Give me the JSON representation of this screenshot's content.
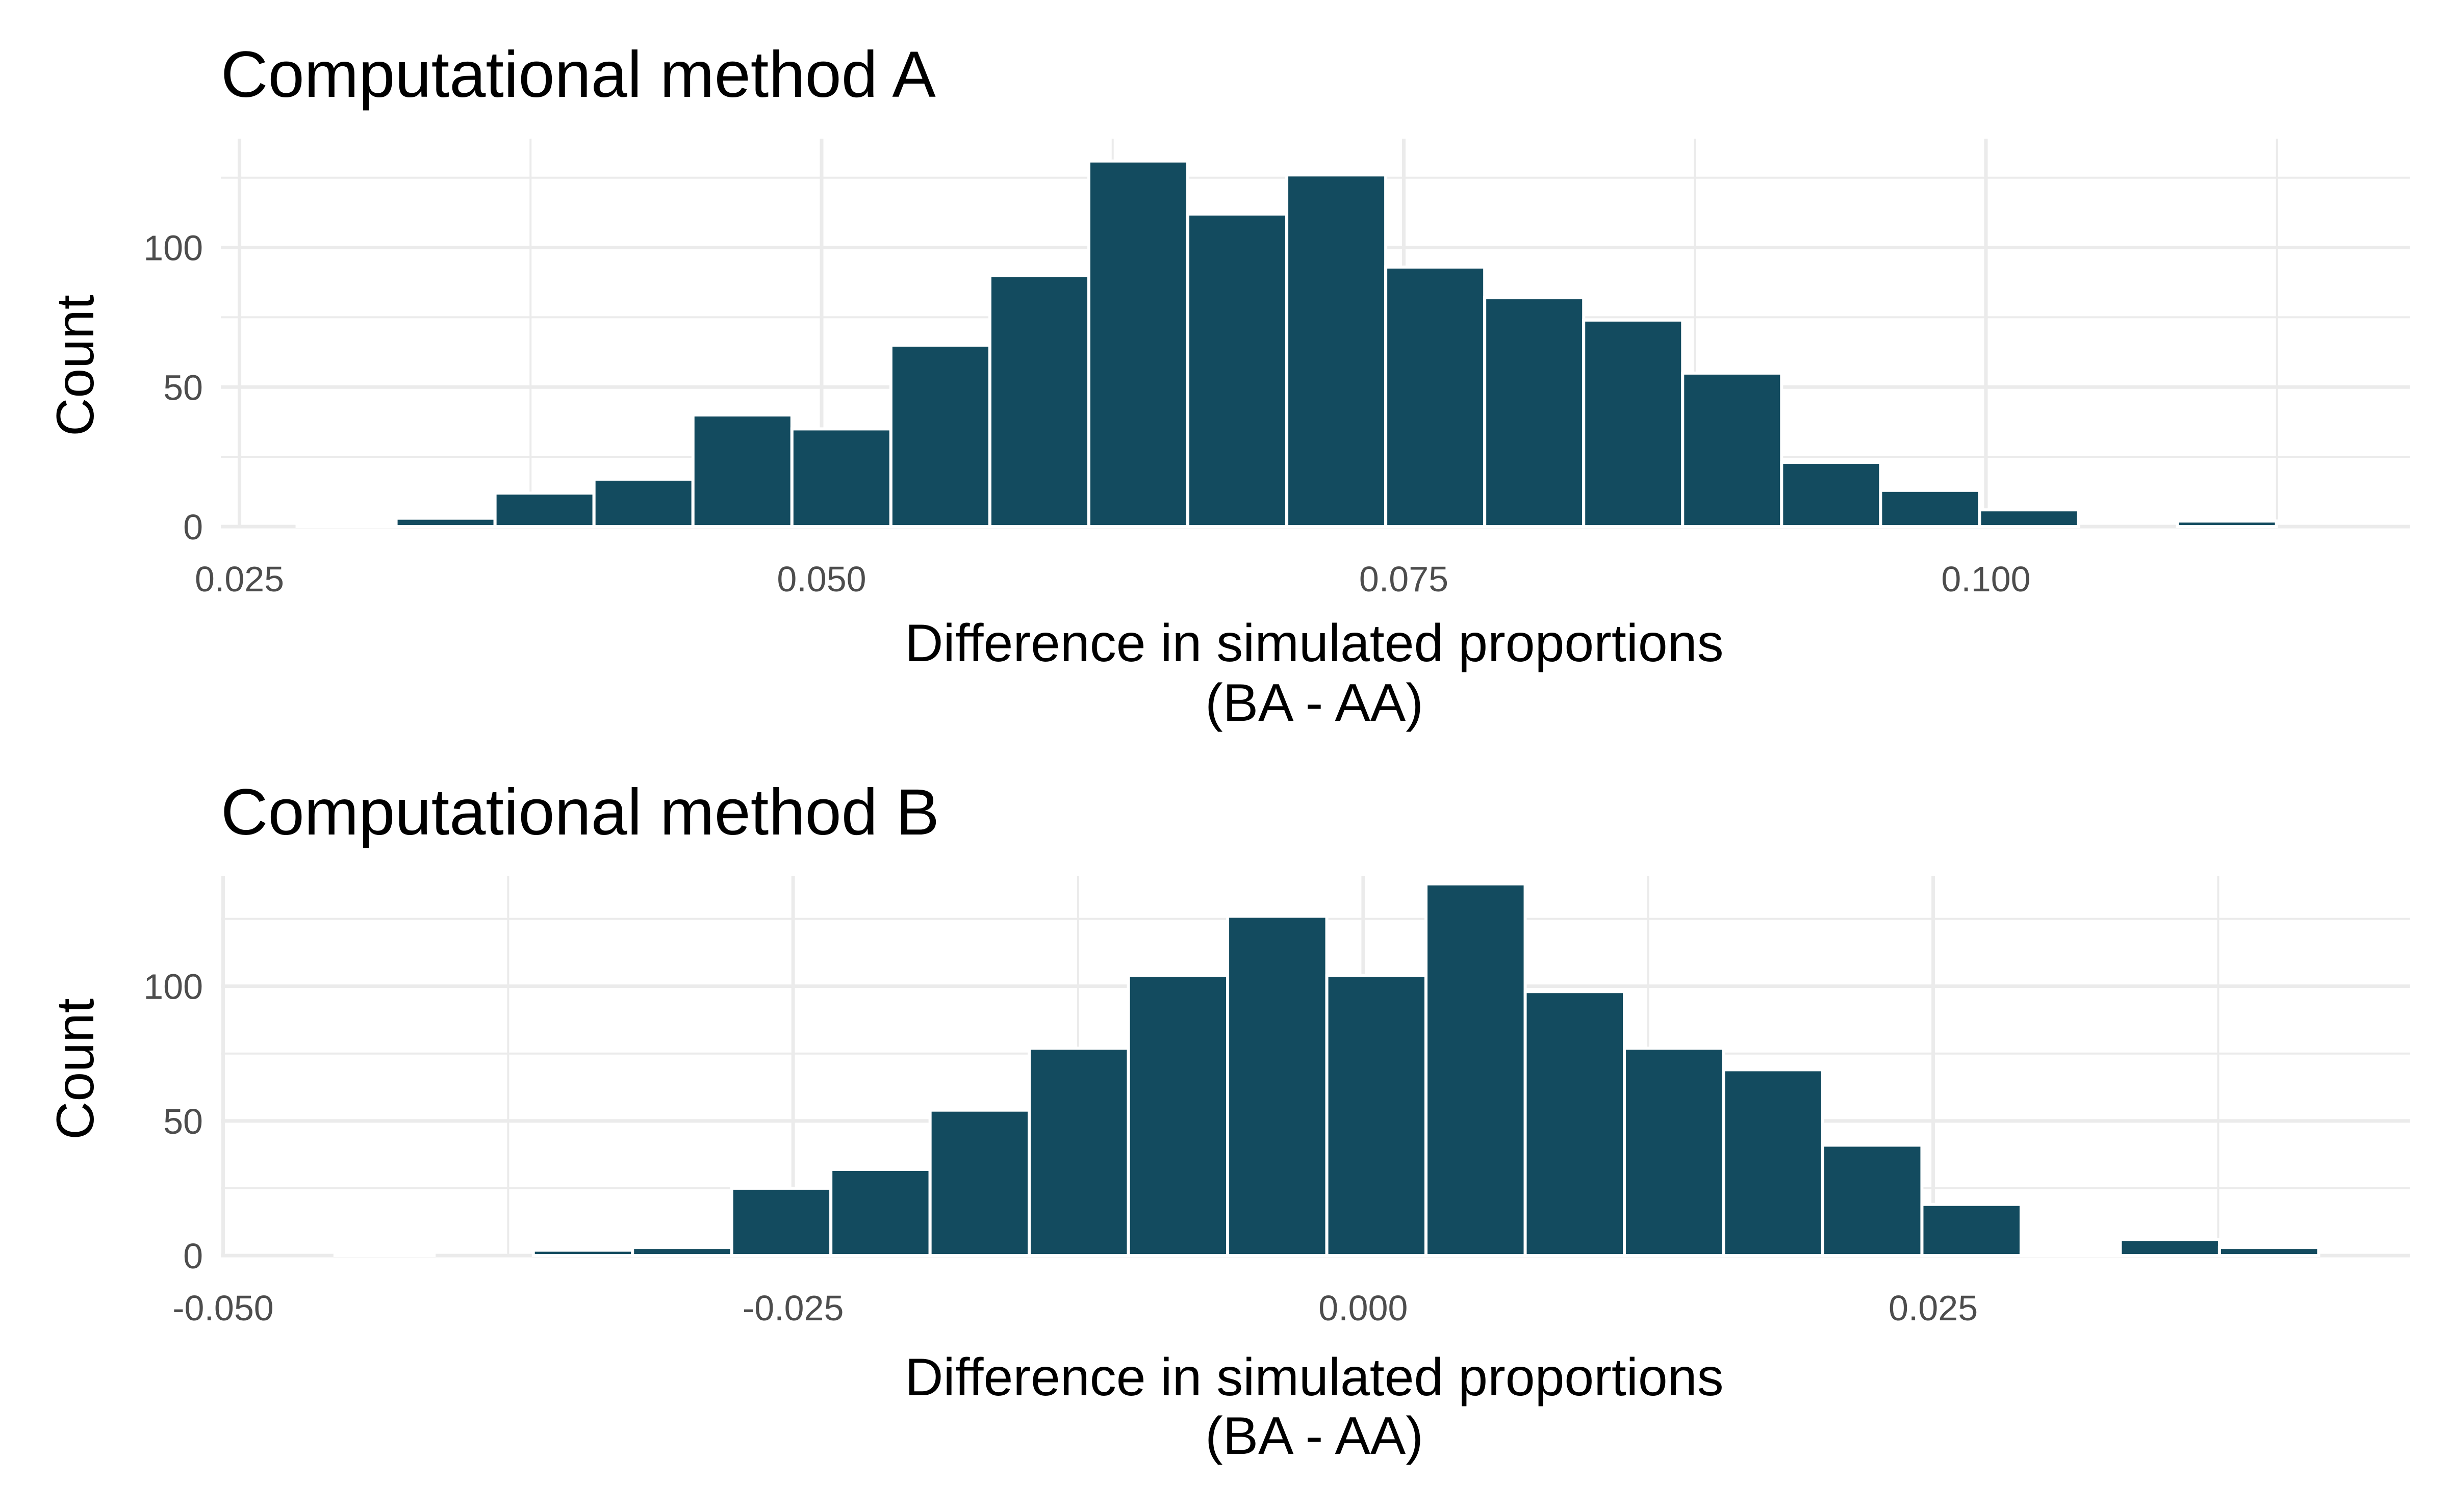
{
  "colors": {
    "bar_fill": "#134b5f",
    "background": "#ffffff",
    "grid": "#ebebeb",
    "tick_text": "#4d4d4d"
  },
  "chart_data": [
    {
      "type": "bar",
      "title": "Computational method A",
      "xlabel": "Difference in simulated proportions",
      "xlabel_line2": "(BA - AA)",
      "ylabel": "Count",
      "xlim": [
        0.0242,
        0.1182
      ],
      "ylim": [
        0,
        139
      ],
      "xticks": [
        0.025,
        0.05,
        0.075,
        0.1
      ],
      "xtick_labels": [
        "0.025",
        "0.050",
        "0.075",
        "0.100"
      ],
      "xminor": [
        0.0375,
        0.0625,
        0.0875,
        0.1125
      ],
      "yticks": [
        0,
        50,
        100
      ],
      "ytick_labels": [
        "0",
        "50",
        "100"
      ],
      "yminor": [
        25,
        75,
        125
      ],
      "bin_width": 0.00425,
      "bin_centers": [
        0.0296,
        0.03385,
        0.0381,
        0.04235,
        0.0466,
        0.05085,
        0.0551,
        0.05935,
        0.0636,
        0.06785,
        0.0721,
        0.07635,
        0.0806,
        0.08485,
        0.0891,
        0.09335,
        0.0976,
        0.10185,
        0.1061,
        0.11035
      ],
      "values": [
        1,
        3,
        12,
        17,
        40,
        35,
        65,
        90,
        131,
        112,
        126,
        93,
        82,
        74,
        55,
        23,
        13,
        6,
        0,
        2
      ]
    },
    {
      "type": "bar",
      "title": "Computational method B",
      "xlabel": "Difference in simulated proportions",
      "xlabel_line2": "(BA - AA)",
      "ylabel": "Count",
      "xlim": [
        -0.0501,
        0.0459
      ],
      "ylim": [
        0,
        141
      ],
      "xticks": [
        -0.05,
        -0.025,
        0.0,
        0.025
      ],
      "xtick_labels": [
        "-0.050",
        "-0.025",
        "0.000",
        "0.025"
      ],
      "xminor": [
        -0.0375,
        -0.0125,
        0.0125,
        0.0375
      ],
      "yticks": [
        0,
        50,
        100
      ],
      "ytick_labels": [
        "0",
        "50",
        "100"
      ],
      "yminor": [
        25,
        75,
        125
      ],
      "bin_width": 0.00435,
      "bin_centers": [
        -0.04292,
        -0.03857,
        -0.03422,
        -0.02987,
        -0.02552,
        -0.02117,
        -0.01682,
        -0.01247,
        -0.00812,
        -0.00377,
        0.00058,
        0.00493,
        0.00928,
        0.01363,
        0.01798,
        0.02233,
        0.02668,
        0.03103,
        0.03538,
        0.03973
      ],
      "values": [
        1,
        0,
        2,
        3,
        25,
        32,
        54,
        77,
        104,
        126,
        104,
        138,
        98,
        77,
        69,
        41,
        19,
        1,
        6,
        3
      ]
    }
  ]
}
